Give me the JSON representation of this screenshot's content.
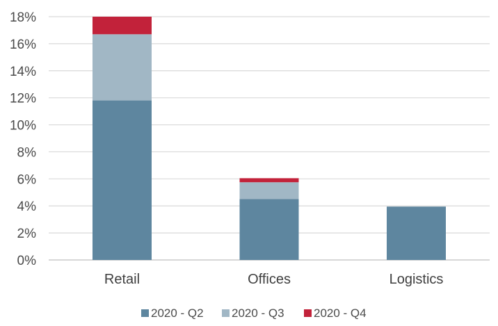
{
  "chart_data": {
    "type": "bar",
    "stacked": true,
    "categories": [
      "Retail",
      "Offices",
      "Logistics"
    ],
    "series": [
      {
        "name": "2020 - Q2",
        "color": "#5e869f",
        "values": [
          11.8,
          4.5,
          3.95
        ]
      },
      {
        "name": "2020 - Q3",
        "color": "#a1b7c5",
        "values": [
          4.9,
          1.25,
          0
        ]
      },
      {
        "name": "2020 - Q4",
        "color": "#c2223a",
        "values": [
          1.3,
          0.3,
          0
        ]
      }
    ],
    "y_ticks": [
      "0%",
      "2%",
      "4%",
      "6%",
      "8%",
      "10%",
      "12%",
      "14%",
      "16%",
      "18%"
    ],
    "ylim": [
      0,
      18
    ],
    "grid": true,
    "legend_position": "bottom"
  }
}
